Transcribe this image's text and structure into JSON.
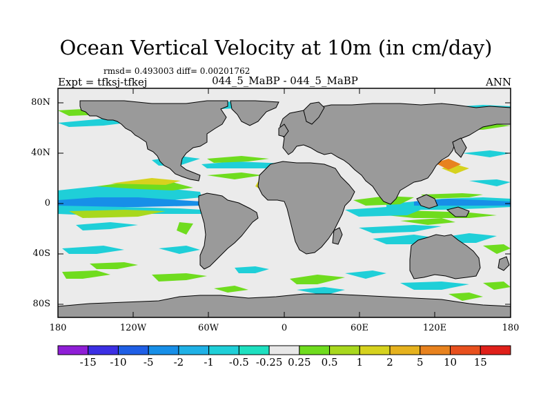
{
  "title": "Ocean Vertical Velocity at 10m (in cm/day)",
  "stats": "rmsd= 0.493003 diff= 0.00201762",
  "expt": "Expt = tfksj-tfkej",
  "subtitle": "044_5_MaBP - 044_5_MaBP",
  "season": "ANN",
  "y_axis_labels": [
    "80N",
    "40N",
    "0",
    "40S",
    "80S"
  ],
  "x_axis_labels": [
    "180",
    "120W",
    "60W",
    "0",
    "60E",
    "120E",
    "180"
  ],
  "colorbar": {
    "labels": [
      "-15",
      "-10",
      "-5",
      "-2",
      "-1",
      "-0.5",
      "-0.25",
      "0.25",
      "0.5",
      "1",
      "2",
      "5",
      "10",
      "15"
    ],
    "colors": [
      "#8f1ed6",
      "#3c2fe4",
      "#1f5fe6",
      "#178fe8",
      "#1fb1e6",
      "#1fcfd8",
      "#1ee0c0",
      "#e8e8e8",
      "#6fdc1e",
      "#a8d81e",
      "#d6d21e",
      "#e6b21e",
      "#e8821e",
      "#e8501e",
      "#e0201a"
    ]
  },
  "land_color": "#9a9a9a",
  "ocean_color": "#ebebeb"
}
